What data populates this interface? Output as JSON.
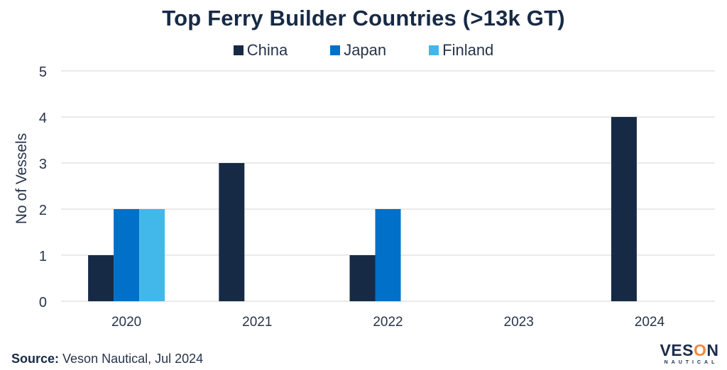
{
  "chart_data": {
    "type": "bar",
    "title": "Top Ferry Builder Countries (>13k GT)",
    "xlabel": "",
    "ylabel": "No of Vessels",
    "categories": [
      "2020",
      "2021",
      "2022",
      "2023",
      "2024"
    ],
    "series": [
      {
        "name": "China",
        "color": "#172a45",
        "values": [
          1,
          3,
          1,
          0,
          4
        ]
      },
      {
        "name": "Japan",
        "color": "#0070c8",
        "values": [
          2,
          0,
          2,
          0,
          0
        ]
      },
      {
        "name": "Finland",
        "color": "#42b8ea",
        "values": [
          2,
          0,
          0,
          0,
          0
        ]
      }
    ],
    "ylim": [
      0,
      5
    ],
    "yticks": [
      "0",
      "1",
      "2",
      "3",
      "4",
      "5"
    ],
    "grid": true,
    "legend_position": "top-center"
  },
  "source": {
    "label": "Source:",
    "text": " Veson Nautical, Jul 2024"
  },
  "logo": {
    "main_prefix": "VES",
    "main_o": "O",
    "main_suffix": "N",
    "sub": "NAUTICAL"
  }
}
